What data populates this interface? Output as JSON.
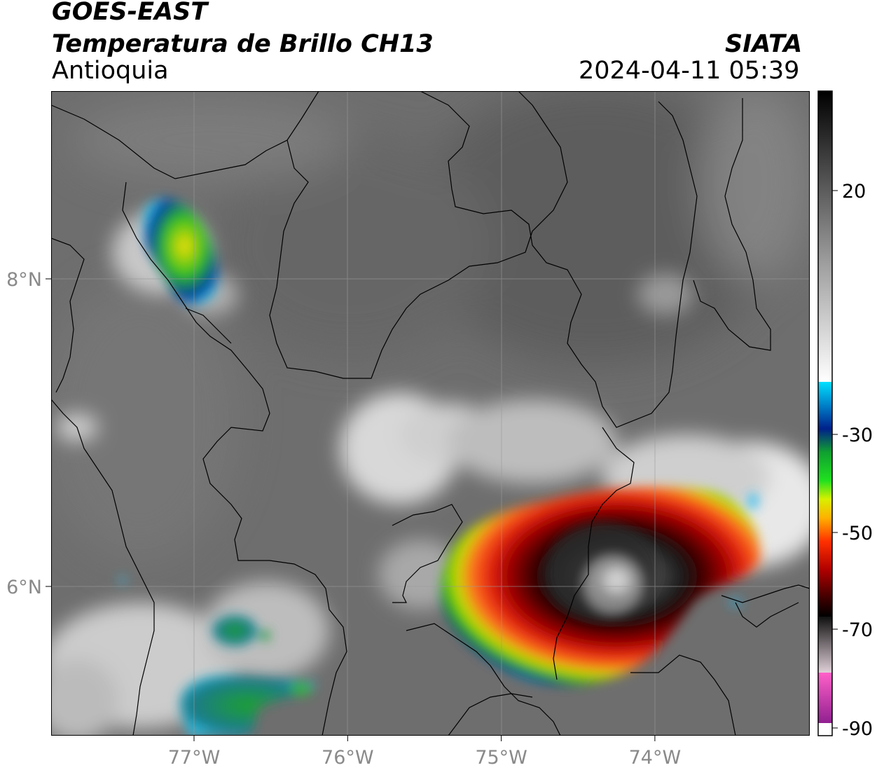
{
  "header": {
    "satellite": "GOES-EAST",
    "product": "Temperatura de Brillo CH13",
    "region": "Antioquia",
    "organization": "SIATA",
    "datetime": "2024-04-11 05:39"
  },
  "map": {
    "lon_ticks": [
      {
        "value": -77,
        "label": "77°W"
      },
      {
        "value": -76,
        "label": "76°W"
      },
      {
        "value": -75,
        "label": "75°W"
      },
      {
        "value": -74,
        "label": "74°W"
      }
    ],
    "lat_ticks": [
      {
        "value": 8,
        "label": "8°N"
      },
      {
        "value": 6,
        "label": "6°N"
      }
    ],
    "colors": {
      "background_gray": "#6f6f6f",
      "borders": "#000000",
      "gridlines": "#9a9a9a"
    }
  },
  "colorbar": {
    "ticks": [
      {
        "value": 20,
        "label": "20"
      },
      {
        "value": -30,
        "label": "-30"
      },
      {
        "value": -50,
        "label": "-50"
      },
      {
        "value": -70,
        "label": "-70"
      },
      {
        "value": -90,
        "label": "-90"
      }
    ]
  }
}
